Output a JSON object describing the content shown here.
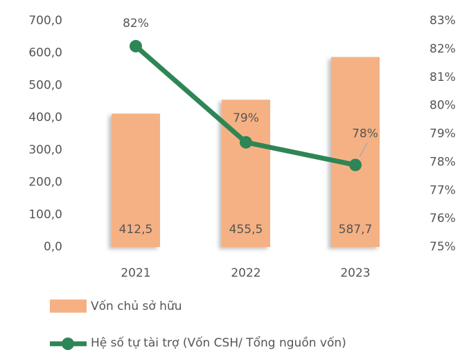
{
  "chart_data": {
    "type": "bar_line",
    "categories": [
      "2021",
      "2022",
      "2023"
    ],
    "series": [
      {
        "name": "Vốn chủ sở hữu",
        "type": "bar",
        "color": "#f5b183",
        "values": [
          412.5,
          455.5,
          587.7
        ],
        "value_labels": [
          "412,5",
          "455,5",
          "587,7"
        ]
      },
      {
        "name": "Hệ số tự tài trợ (Vốn CSH/ Tổng nguồn vốn)",
        "type": "line",
        "axis": "y2",
        "color": "#2e8555",
        "values": [
          82.1,
          78.7,
          77.9
        ],
        "value_labels": [
          "82%",
          "79%",
          "78%"
        ]
      }
    ],
    "ylim": [
      0,
      700
    ],
    "yticks": [
      {
        "value": 0,
        "label": "0,0"
      },
      {
        "value": 100,
        "label": "100,0"
      },
      {
        "value": 200,
        "label": "200,0"
      },
      {
        "value": 300,
        "label": "300,0"
      },
      {
        "value": 400,
        "label": "400,0"
      },
      {
        "value": 500,
        "label": "500,0"
      },
      {
        "value": 600,
        "label": "600,0"
      },
      {
        "value": 700,
        "label": "700,0"
      }
    ],
    "y2lim": [
      75,
      83
    ],
    "y2ticks": [
      {
        "value": 75,
        "label": "75%"
      },
      {
        "value": 76,
        "label": "76%"
      },
      {
        "value": 77,
        "label": "77%"
      },
      {
        "value": 78,
        "label": "78%"
      },
      {
        "value": 79,
        "label": "79%"
      },
      {
        "value": 80,
        "label": "80%"
      },
      {
        "value": 81,
        "label": "81%"
      },
      {
        "value": 82,
        "label": "82%"
      },
      {
        "value": 83,
        "label": "83%"
      }
    ],
    "legend": "bottom"
  }
}
